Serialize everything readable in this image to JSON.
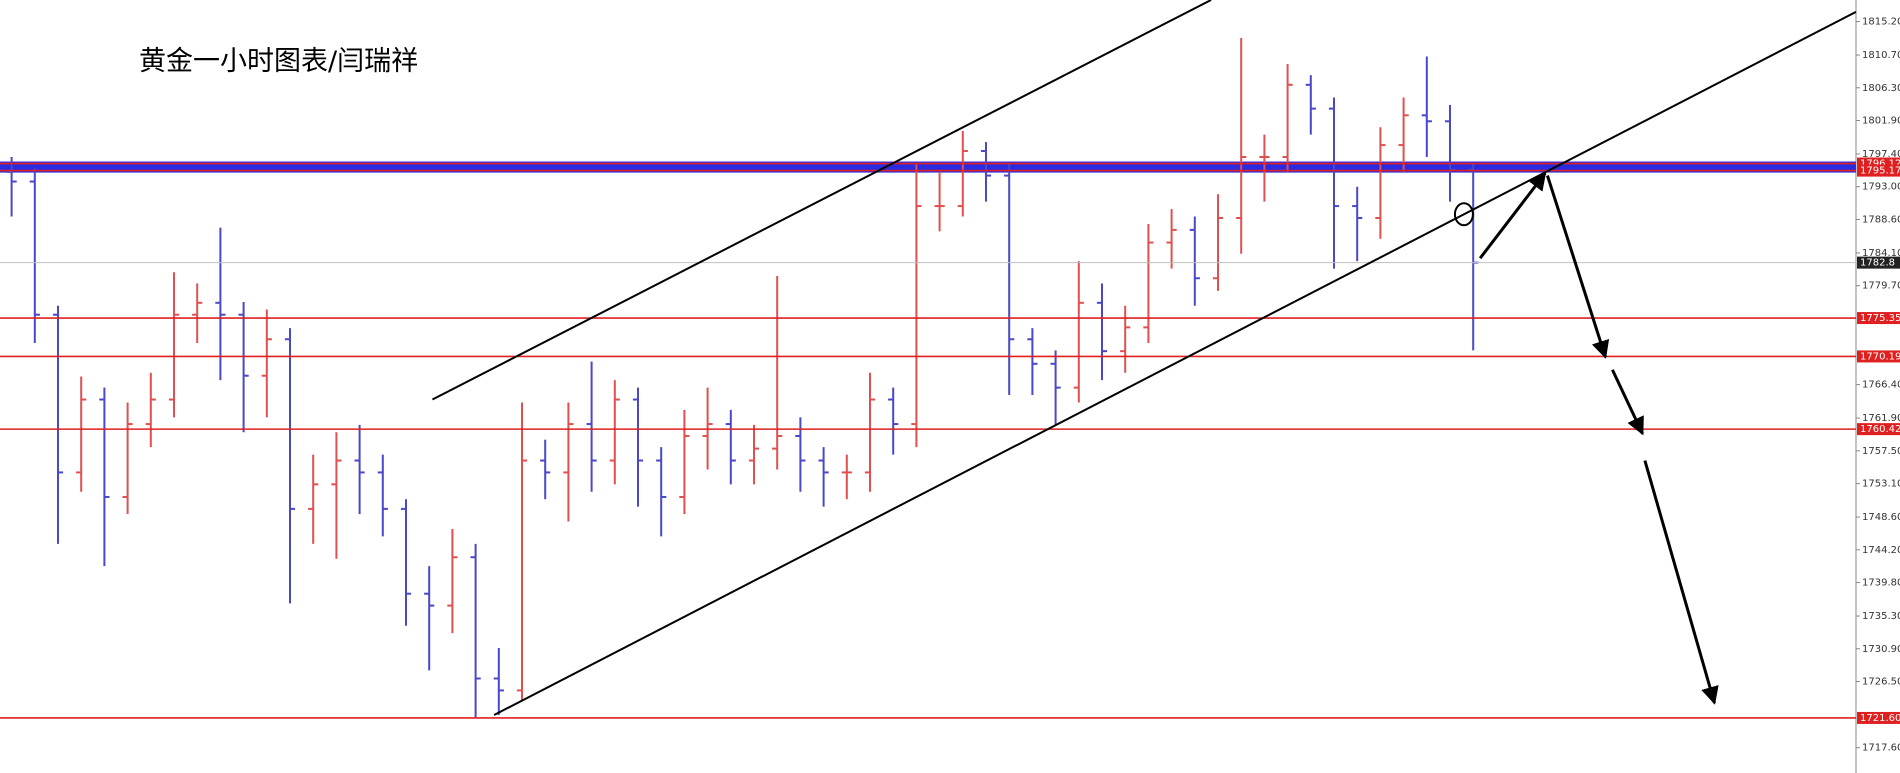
{
  "chart_data": {
    "type": "ohlc",
    "title": "黄金一小时图表/闫瑞祥",
    "xlim": [
      0,
      80
    ],
    "ylim": [
      1714.2,
      1818.1
    ],
    "yticks": [
      {
        "value": 1815.2,
        "label": "1815.20"
      },
      {
        "value": 1810.7,
        "label": "1810.70"
      },
      {
        "value": 1806.3,
        "label": "1806.30"
      },
      {
        "value": 1801.9,
        "label": "1801.90"
      },
      {
        "value": 1797.4,
        "label": "1797.40"
      },
      {
        "value": 1793.0,
        "label": "1793.00"
      },
      {
        "value": 1788.6,
        "label": "1788.60"
      },
      {
        "value": 1784.1,
        "label": "1784.10"
      },
      {
        "value": 1779.7,
        "label": "1779.70"
      },
      {
        "value": 1766.4,
        "label": "1766.40"
      },
      {
        "value": 1761.9,
        "label": "1761.90"
      },
      {
        "value": 1757.5,
        "label": "1757.50"
      },
      {
        "value": 1753.1,
        "label": "1753.10"
      },
      {
        "value": 1748.6,
        "label": "1748.60"
      },
      {
        "value": 1744.2,
        "label": "1744.20"
      },
      {
        "value": 1739.8,
        "label": "1739.80"
      },
      {
        "value": 1735.3,
        "label": "1735.30"
      },
      {
        "value": 1730.9,
        "label": "1730.90"
      },
      {
        "value": 1726.5,
        "label": "1726.50"
      },
      {
        "value": 1717.6,
        "label": "1717.60"
      }
    ],
    "up_color": "#e05050",
    "down_color": "#4848c8",
    "open": [
      1795.0,
      1793.7,
      1775.8,
      1754.6,
      1764.4,
      1751.3,
      1761.1,
      1764.4,
      1775.8,
      1777.4,
      1775.8,
      1767.6,
      1772.5,
      1749.7,
      1753.0,
      1756.2,
      1754.6,
      1749.7,
      1738.3,
      1736.7,
      1743.2,
      1726.9,
      1725.3,
      1756.2,
      1754.6,
      1761.1,
      1756.2,
      1764.4,
      1756.2,
      1751.3,
      1759.5,
      1761.1,
      1756.2,
      1757.8,
      1759.5,
      1756.2,
      1754.6,
      1754.6,
      1764.4,
      1761.1,
      1790.4,
      1790.4,
      1797.8,
      1794.5,
      1772.5,
      1769.2,
      1766.0,
      1777.4,
      1770.9,
      1774.1,
      1785.5,
      1787.2,
      1780.7,
      1788.8,
      1797.0,
      1797.0,
      1806.7,
      1803.5,
      1790.4,
      1788.8,
      1798.6,
      1802.6,
      1801.8,
      1795.3
    ],
    "high": [
      1797.0,
      1795.5,
      1777.0,
      1767.5,
      1766.0,
      1764.0,
      1768.0,
      1781.5,
      1780.0,
      1787.5,
      1777.5,
      1776.5,
      1774.0,
      1757.0,
      1760.0,
      1761.0,
      1757.0,
      1751.0,
      1742.0,
      1747.0,
      1745.0,
      1731.0,
      1764.0,
      1759.0,
      1764.0,
      1769.5,
      1767.0,
      1766.0,
      1758.0,
      1763.0,
      1766.0,
      1763.0,
      1761.0,
      1781.0,
      1762.0,
      1758.0,
      1757.0,
      1768.0,
      1766.0,
      1796.0,
      1795.0,
      1800.5,
      1799.0,
      1796.0,
      1774.0,
      1771.0,
      1783.0,
      1780.0,
      1777.0,
      1788.0,
      1790.0,
      1789.0,
      1792.0,
      1813.0,
      1800.0,
      1809.5,
      1808.0,
      1805.0,
      1793.0,
      1801.0,
      1805.0,
      1810.5,
      1804.0,
      1796.0
    ],
    "low": [
      1789.0,
      1772.0,
      1745.0,
      1752.0,
      1742.0,
      1749.0,
      1758.0,
      1762.0,
      1772.0,
      1767.0,
      1760.0,
      1762.0,
      1737.0,
      1745.0,
      1743.0,
      1749.0,
      1746.0,
      1734.0,
      1728.0,
      1733.0,
      1721.6,
      1722.0,
      1724.0,
      1751.0,
      1748.0,
      1752.0,
      1753.0,
      1750.0,
      1746.0,
      1749.0,
      1755.0,
      1753.0,
      1753.0,
      1755.0,
      1752.0,
      1750.0,
      1751.0,
      1752.0,
      1757.0,
      1758.0,
      1787.0,
      1789.0,
      1791.0,
      1765.0,
      1765.0,
      1761.0,
      1764.0,
      1767.0,
      1768.0,
      1772.0,
      1782.0,
      1777.0,
      1779.0,
      1784.0,
      1791.0,
      1795.0,
      1800.0,
      1782.0,
      1783.0,
      1786.0,
      1795.0,
      1797.0,
      1791.0,
      1771.0
    ],
    "close": [
      1793.7,
      1775.8,
      1754.6,
      1764.4,
      1751.3,
      1761.1,
      1764.4,
      1775.8,
      1777.4,
      1775.8,
      1767.6,
      1772.5,
      1749.7,
      1753.0,
      1756.2,
      1754.6,
      1749.7,
      1738.3,
      1736.7,
      1743.2,
      1726.9,
      1725.3,
      1756.2,
      1754.6,
      1761.1,
      1756.2,
      1764.4,
      1756.2,
      1751.3,
      1759.5,
      1761.1,
      1756.2,
      1757.8,
      1759.5,
      1756.2,
      1754.6,
      1754.6,
      1764.4,
      1761.1,
      1790.4,
      1790.4,
      1797.8,
      1794.5,
      1772.5,
      1769.2,
      1766.0,
      1777.4,
      1770.9,
      1774.1,
      1785.5,
      1787.2,
      1780.7,
      1788.8,
      1797.0,
      1797.0,
      1806.7,
      1803.5,
      1790.4,
      1788.8,
      1798.6,
      1802.6,
      1801.8,
      1795.3,
      1782.8
    ],
    "levels": [
      {
        "value": 1796.12,
        "color": "#e02020"
      },
      {
        "value": 1795.17,
        "color": "#e02020"
      },
      {
        "value": 1782.8,
        "color": "#c0c0c0"
      },
      {
        "value": 1775.35,
        "color": "#e02020"
      },
      {
        "value": 1770.19,
        "color": "#e02020"
      },
      {
        "value": 1760.42,
        "color": "#e02020"
      },
      {
        "value": 1721.6,
        "label": "1721.60",
        "color": "#e02020"
      }
    ],
    "zone_color": "#2a2ae0",
    "lines": [
      {
        "x": [
          18.64,
          52.2
        ],
        "y": [
          1764.4,
          1818.1
        ]
      },
      {
        "x": [
          21.3,
          80
        ],
        "y": [
          1722.0,
          1816.5
        ]
      }
    ],
    "arrows": [
      {
        "x": [
          63.8,
          66.6
        ],
        "y": [
          1783.4,
          1794.8
        ]
      },
      {
        "x": [
          66.7,
          69.2
        ],
        "y": [
          1794.5,
          1770.1
        ]
      },
      {
        "x": [
          69.5,
          70.8
        ],
        "y": [
          1768.4,
          1759.8
        ]
      },
      {
        "x": [
          70.9,
          73.9
        ],
        "y": [
          1756.2,
          1723.6
        ]
      }
    ],
    "circle": {
      "x": 63.1,
      "y": 1789.3
    }
  }
}
